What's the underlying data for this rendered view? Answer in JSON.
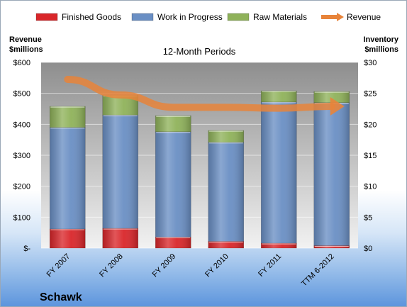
{
  "chart_data": {
    "type": "bar",
    "stacked": true,
    "company": "Schawk",
    "plot_title": "12-Month Periods",
    "left_axis_label": [
      "Revenue",
      "$millions"
    ],
    "right_axis_label": [
      "Inventory",
      "$millions"
    ],
    "categories": [
      "FY 2007",
      "FY 2008",
      "FY 2009",
      "FY 2010",
      "FY 2011",
      "TTM 6-2012"
    ],
    "series": [
      {
        "name": "Finished Goods",
        "axis": "right",
        "color": "#d9262a",
        "values": [
          3.1,
          3.2,
          1.8,
          1.1,
          0.8,
          0.4
        ]
      },
      {
        "name": "Work in Progress",
        "axis": "right",
        "color": "#6a8fc4",
        "values": [
          16.4,
          18.3,
          17.0,
          16.0,
          22.8,
          23.1
        ]
      },
      {
        "name": "Raw Materials",
        "axis": "right",
        "color": "#8fb25a",
        "values": [
          3.4,
          3.2,
          2.6,
          1.9,
          1.8,
          1.8
        ]
      },
      {
        "name": "Revenue",
        "axis": "left",
        "type": "line",
        "color": "#e8843a",
        "values": [
          545,
          495,
          455,
          455,
          452,
          458
        ]
      }
    ],
    "left_axis": {
      "min": 0,
      "max": 600,
      "step": 100,
      "ticks": [
        "$-",
        "$100",
        "$200",
        "$300",
        "$400",
        "$500",
        "$600"
      ]
    },
    "right_axis": {
      "min": 0,
      "max": 30,
      "step": 5,
      "ticks": [
        "$0",
        "$5",
        "$10",
        "$15",
        "$20",
        "$25",
        "$30"
      ]
    },
    "grid": true,
    "legend_position": "top"
  }
}
